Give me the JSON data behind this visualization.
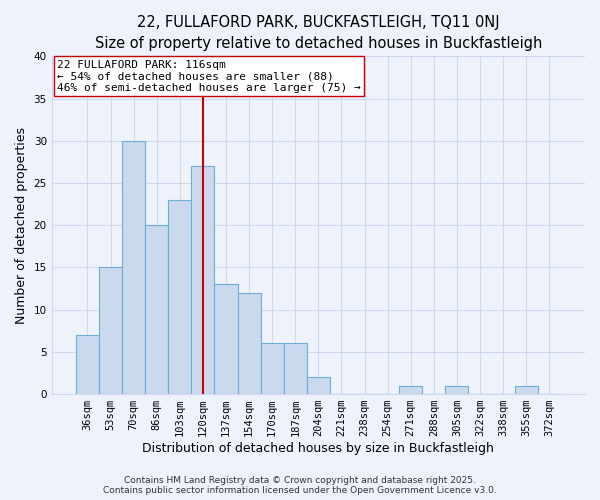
{
  "title_line1": "22, FULLAFORD PARK, BUCKFASTLEIGH, TQ11 0NJ",
  "title_line2": "Size of property relative to detached houses in Buckfastleigh",
  "xlabel": "Distribution of detached houses by size in Buckfastleigh",
  "ylabel": "Number of detached properties",
  "bar_labels": [
    "36sqm",
    "53sqm",
    "70sqm",
    "86sqm",
    "103sqm",
    "120sqm",
    "137sqm",
    "154sqm",
    "170sqm",
    "187sqm",
    "204sqm",
    "221sqm",
    "238sqm",
    "254sqm",
    "271sqm",
    "288sqm",
    "305sqm",
    "322sqm",
    "338sqm",
    "355sqm",
    "372sqm"
  ],
  "bar_values": [
    7,
    15,
    30,
    20,
    23,
    27,
    13,
    12,
    6,
    6,
    2,
    0,
    0,
    0,
    1,
    0,
    1,
    0,
    0,
    1,
    0
  ],
  "bar_color": "#c9d9ee",
  "bar_edge_color": "#6baed6",
  "vline_color": "#cc0000",
  "annotation_text": "22 FULLAFORD PARK: 116sqm\n← 54% of detached houses are smaller (88)\n46% of semi-detached houses are larger (75) →",
  "annotation_box_color": "#ffffff",
  "annotation_box_edge": "#cc0000",
  "ylim": [
    0,
    40
  ],
  "yticks": [
    0,
    5,
    10,
    15,
    20,
    25,
    30,
    35,
    40
  ],
  "footer_line1": "Contains HM Land Registry data © Crown copyright and database right 2025.",
  "footer_line2": "Contains public sector information licensed under the Open Government Licence v3.0.",
  "background_color": "#eef2fb",
  "grid_color": "#d0d8ee",
  "title_fontsize": 10.5,
  "subtitle_fontsize": 9.5,
  "axis_label_fontsize": 9,
  "tick_fontsize": 7.5,
  "annotation_fontsize": 8,
  "footer_fontsize": 6.5,
  "vline_bin_index": 5
}
